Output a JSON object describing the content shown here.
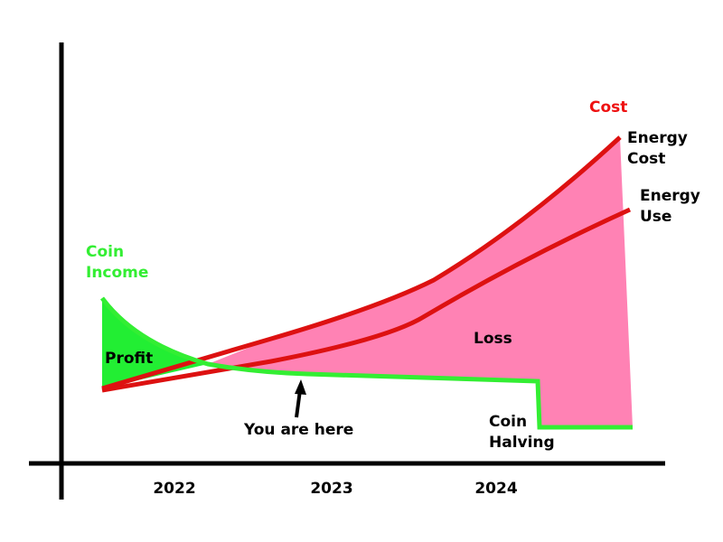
{
  "labels": {
    "cost": "Cost",
    "energy_cost": [
      "Energy",
      "Cost"
    ],
    "energy_use": [
      "Energy",
      "Use"
    ],
    "coin_income": [
      "Coin",
      "Income"
    ],
    "profit": "Profit",
    "loss": "Loss",
    "you_are_here": "You are here",
    "coin_halving": [
      "Coin",
      "Halving"
    ]
  },
  "years": [
    "2022",
    "2023",
    "2024"
  ]
}
